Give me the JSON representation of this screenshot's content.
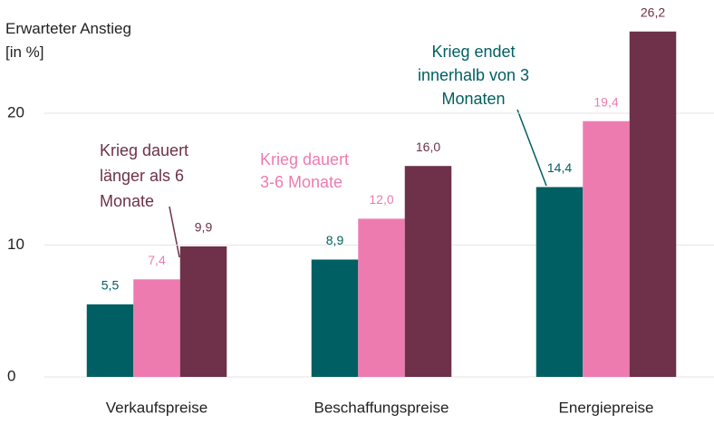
{
  "chart_data": {
    "type": "bar",
    "ylabel": [
      "Erwarteter Anstieg",
      "[in %]"
    ],
    "categories": [
      "Verkaufspreise",
      "Beschaffungspreise",
      "Energiepreise"
    ],
    "series": [
      {
        "name": "Krieg endet innerhalb von 3 Monaten",
        "color": "#005f62",
        "values": [
          5.5,
          8.9,
          14.4
        ],
        "value_labels": [
          "5,5",
          "8,9",
          "14,4"
        ]
      },
      {
        "name": "Krieg dauert 3-6 Monate",
        "color": "#ee7bb0",
        "values": [
          7.4,
          12.0,
          19.4
        ],
        "value_labels": [
          "7,4",
          "12,0",
          "19,4"
        ]
      },
      {
        "name": "Krieg dauert länger als 6 Monate",
        "color": "#6e3149",
        "values": [
          9.9,
          16.0,
          26.2
        ],
        "value_labels": [
          "9,9",
          "16,0",
          "26,2"
        ]
      }
    ],
    "ylim": [
      0,
      28
    ],
    "yticks": [
      0,
      10,
      20
    ],
    "grid": true
  }
}
